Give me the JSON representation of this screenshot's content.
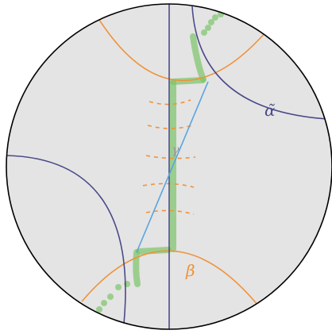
{
  "labels": {
    "alpha": "α̃",
    "gamma": "γ",
    "beta": "β"
  }
}
